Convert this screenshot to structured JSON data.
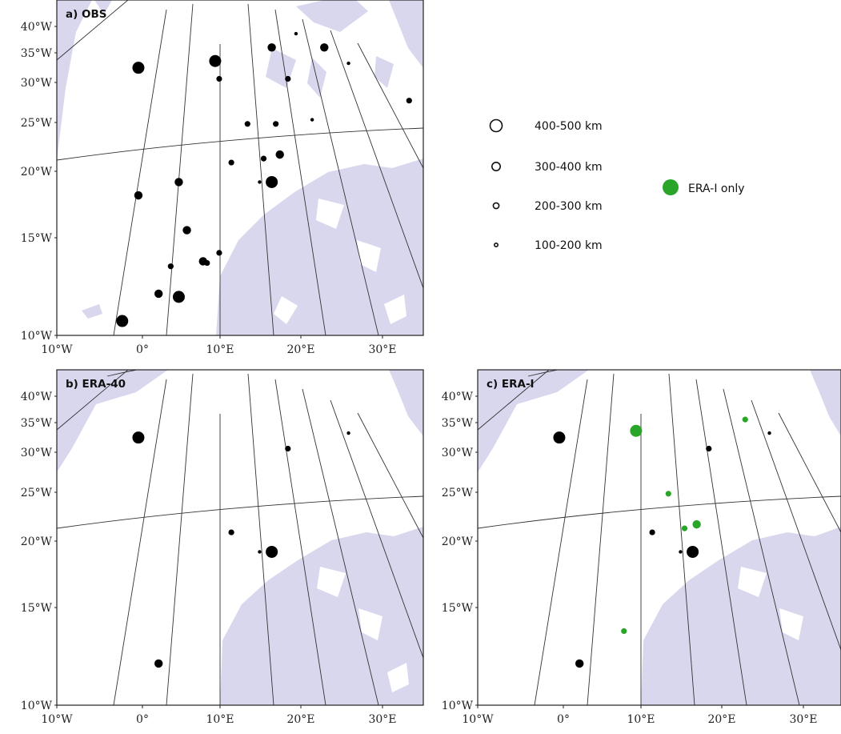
{
  "panels": [
    {
      "id": "a",
      "title": "a) OBS",
      "y_labels": [
        "40°W",
        "35°W",
        "30°W",
        "25°W",
        "20°W",
        "15°W",
        "10°W"
      ],
      "x_labels": [
        "10°W",
        "0°",
        "10°E",
        "20°E",
        "30°E"
      ]
    },
    {
      "id": "b",
      "title": "b) ERA-40",
      "y_labels": [
        "40°W",
        "35°W",
        "30°W",
        "25°W",
        "20°W",
        "15°W",
        "10°W"
      ],
      "x_labels": [
        "10°W",
        "0°",
        "10°E",
        "20°E",
        "30°E"
      ]
    },
    {
      "id": "c",
      "title": "c) ERA-I",
      "y_labels": [
        "40°W",
        "35°W",
        "30°W",
        "25°W",
        "20°W",
        "15°W",
        "10°W"
      ],
      "x_labels": [
        "10°W",
        "0°",
        "10°E",
        "20°E",
        "30°E"
      ]
    }
  ],
  "legend": {
    "size_classes": [
      {
        "label": "400-500 km",
        "size_class": 4
      },
      {
        "label": "300-400 km",
        "size_class": 3
      },
      {
        "label": "200-300 km",
        "size_class": 2
      },
      {
        "label": "100-200 km",
        "size_class": 1
      }
    ],
    "green_label": "ERA-I only"
  },
  "colors": {
    "land": "#d9d7ee",
    "grid": "#333333",
    "marker": "#000000",
    "era_i_only": "#2aa52a"
  },
  "chart_data": [
    {
      "type": "scatter",
      "panel": "a) OBS",
      "points": [
        {
          "lon": -0.5,
          "lat": 24.7,
          "size_class": 4
        },
        {
          "lon": 9,
          "lat": 25,
          "size_class": 4
        },
        {
          "lon": 9.5,
          "lat": 24.2,
          "size_class": 2
        },
        {
          "lon": 16,
          "lat": 25.6,
          "size_class": 3
        },
        {
          "lon": 18,
          "lat": 24.2,
          "size_class": 2
        },
        {
          "lon": 19,
          "lat": 26.2,
          "size_class": 1
        },
        {
          "lon": 22.5,
          "lat": 25.6,
          "size_class": 3
        },
        {
          "lon": 25,
          "lat": 29,
          "size_class": 2
        },
        {
          "lon": 25.5,
          "lat": 24.9,
          "size_class": 1
        },
        {
          "lon": 33,
          "lat": 23.2,
          "size_class": 2
        },
        {
          "lon": 13,
          "lat": 22.1,
          "size_class": 2
        },
        {
          "lon": 16.5,
          "lat": 22.1,
          "size_class": 2
        },
        {
          "lon": 21,
          "lat": 22.3,
          "size_class": 1
        },
        {
          "lon": 17,
          "lat": 20.6,
          "size_class": 3
        },
        {
          "lon": 15,
          "lat": 20.4,
          "size_class": 2
        },
        {
          "lon": 11,
          "lat": 20.2,
          "size_class": 2
        },
        {
          "lon": 14.5,
          "lat": 19.2,
          "size_class": 1
        },
        {
          "lon": 16,
          "lat": 19.2,
          "size_class": 4
        },
        {
          "lon": 4.5,
          "lat": 19.2,
          "size_class": 3
        },
        {
          "lon": -0.5,
          "lat": 18.5,
          "size_class": 3
        },
        {
          "lon": 5.5,
          "lat": 16.6,
          "size_class": 3
        },
        {
          "lon": 9.5,
          "lat": 15.3,
          "size_class": 2
        },
        {
          "lon": 7.5,
          "lat": 14.8,
          "size_class": 3
        },
        {
          "lon": 8,
          "lat": 14.7,
          "size_class": 2
        },
        {
          "lon": 3.5,
          "lat": 14.5,
          "size_class": 2
        },
        {
          "lon": 2,
          "lat": 12.8,
          "size_class": 3
        },
        {
          "lon": 4.5,
          "lat": 12.6,
          "size_class": 4
        },
        {
          "lon": -2.5,
          "lat": 11,
          "size_class": 4
        }
      ]
    },
    {
      "type": "scatter",
      "panel": "b) ERA-40",
      "points": [
        {
          "lon": -0.5,
          "lat": 24.7,
          "size_class": 4
        },
        {
          "lon": 18,
          "lat": 24.2,
          "size_class": 2
        },
        {
          "lon": 25.5,
          "lat": 24.9,
          "size_class": 1
        },
        {
          "lon": 11,
          "lat": 20.2,
          "size_class": 2
        },
        {
          "lon": 14.5,
          "lat": 19.2,
          "size_class": 1
        },
        {
          "lon": 16,
          "lat": 19.2,
          "size_class": 4
        },
        {
          "lon": 2,
          "lat": 12.8,
          "size_class": 3
        }
      ]
    },
    {
      "type": "scatter",
      "panel": "c) ERA-I",
      "points": [
        {
          "lon": -0.5,
          "lat": 24.7,
          "size_class": 4
        },
        {
          "lon": 9,
          "lat": 25,
          "size_class": 4,
          "era_i_only": true
        },
        {
          "lon": 18,
          "lat": 24.2,
          "size_class": 2
        },
        {
          "lon": 22.5,
          "lat": 25.5,
          "size_class": 2,
          "era_i_only": true
        },
        {
          "lon": 25.5,
          "lat": 24.9,
          "size_class": 1
        },
        {
          "lon": 13,
          "lat": 22.1,
          "size_class": 2,
          "era_i_only": true
        },
        {
          "lon": 15,
          "lat": 20.4,
          "size_class": 2,
          "era_i_only": true
        },
        {
          "lon": 16.5,
          "lat": 20.6,
          "size_class": 3,
          "era_i_only": true
        },
        {
          "lon": 11,
          "lat": 20.2,
          "size_class": 2
        },
        {
          "lon": 14.5,
          "lat": 19.2,
          "size_class": 1
        },
        {
          "lon": 16,
          "lat": 19.2,
          "size_class": 4
        },
        {
          "lon": 7.5,
          "lat": 14.8,
          "size_class": 2,
          "era_i_only": true
        },
        {
          "lon": 2,
          "lat": 12.8,
          "size_class": 3
        }
      ]
    }
  ]
}
